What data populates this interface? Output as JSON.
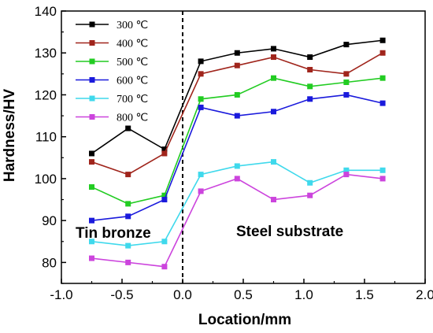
{
  "chart_data": {
    "type": "line",
    "xlabel": "Location/mm",
    "ylabel": "Hardness/HV",
    "xlim": [
      -1.0,
      2.0
    ],
    "ylim": [
      75,
      140
    ],
    "xticks": [
      "-1.0",
      "-0.5",
      "0.0",
      "0.5",
      "1.0",
      "1.5",
      "2.0"
    ],
    "yticks": [
      "80",
      "90",
      "100",
      "110",
      "120",
      "130",
      "140"
    ],
    "grid": false,
    "legend_position": "top-left",
    "x": [
      -0.75,
      -0.45,
      -0.15,
      0.15,
      0.45,
      0.75,
      1.05,
      1.35,
      1.65
    ],
    "series": [
      {
        "name": "300 ℃",
        "color": "#000000",
        "values": [
          106,
          112,
          107,
          128,
          130,
          131,
          129,
          132,
          133
        ]
      },
      {
        "name": "400 ℃",
        "color": "#a0251c",
        "values": [
          104,
          101,
          106,
          125,
          127,
          129,
          126,
          125,
          130
        ]
      },
      {
        "name": "500 ℃",
        "color": "#22cc22",
        "values": [
          98,
          94,
          96,
          119,
          120,
          124,
          122,
          123,
          124
        ]
      },
      {
        "name": "600 ℃",
        "color": "#1a1adc",
        "values": [
          90,
          91,
          95,
          117,
          115,
          116,
          119,
          120,
          118
        ]
      },
      {
        "name": "700 ℃",
        "color": "#3fd9ec",
        "values": [
          85,
          84,
          85,
          101,
          103,
          104,
          99,
          102,
          102
        ]
      },
      {
        "name": "800 ℃",
        "color": "#cc44dd",
        "values": [
          81,
          80,
          79,
          97,
          100,
          95,
          96,
          101,
          100
        ]
      }
    ],
    "divider_x": 0.0,
    "annotations": [
      "Tin bronze",
      "Steel substrate"
    ]
  }
}
